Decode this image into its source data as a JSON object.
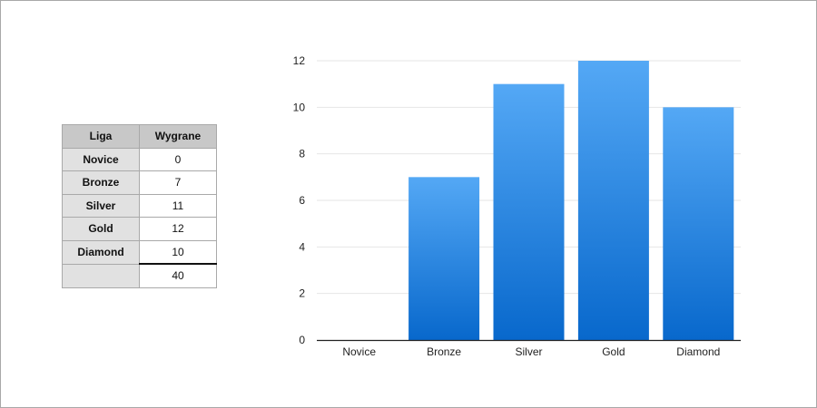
{
  "table": {
    "headers": [
      "Liga",
      "Wygrane"
    ],
    "rows": [
      {
        "league": "Novice",
        "wins": "0"
      },
      {
        "league": "Bronze",
        "wins": "7"
      },
      {
        "league": "Silver",
        "wins": "11"
      },
      {
        "league": "Gold",
        "wins": "12"
      },
      {
        "league": "Diamond",
        "wins": "10"
      }
    ],
    "total": "40"
  },
  "chart_data": {
    "type": "bar",
    "categories": [
      "Novice",
      "Bronze",
      "Silver",
      "Gold",
      "Diamond"
    ],
    "values": [
      0,
      7,
      11,
      12,
      10
    ],
    "title": "",
    "xlabel": "",
    "ylabel": "",
    "ylim": [
      0,
      12
    ],
    "yticks": [
      0,
      2,
      4,
      6,
      8,
      10,
      12
    ],
    "grid": true,
    "legend": "none",
    "colors": {
      "bar_top": "#54a8f5",
      "bar_bottom": "#0868cc",
      "grid": "#e6e6e6",
      "axis": "#222222"
    }
  }
}
